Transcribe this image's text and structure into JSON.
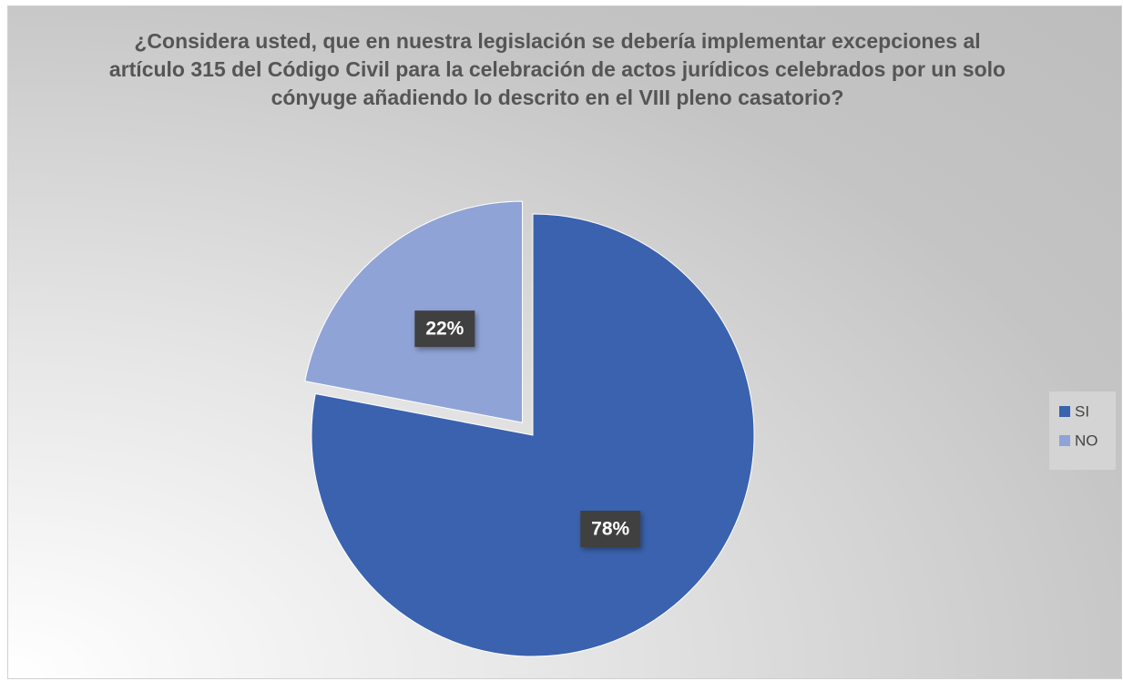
{
  "chart_data": {
    "type": "pie",
    "title": "¿Considera usted, que en nuestra legislación se debería implementar excepciones al artículo 315 del Código Civil para la celebración de actos jurídicos celebrados por un solo cónyuge añadiendo lo descrito en el VIII pleno casatorio?",
    "categories": [
      "SI",
      "NO"
    ],
    "values": [
      78,
      22
    ],
    "value_labels": [
      "78%",
      "22%"
    ],
    "colors": [
      "#3a62ae",
      "#8fa3d6"
    ],
    "explode": [
      false,
      true
    ],
    "legend": "right"
  }
}
